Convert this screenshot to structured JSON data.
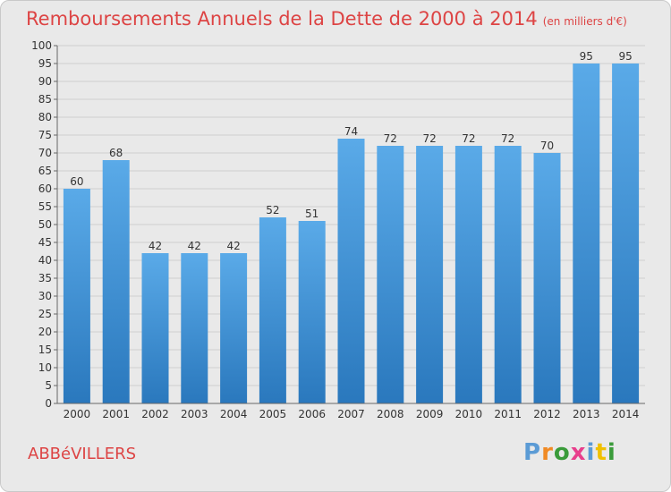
{
  "title": "Remboursements Annuels de la Dette de 2000 à 2014",
  "subtitle": "(en milliers d'€)",
  "location": "ABBéVILLERS",
  "logo": {
    "letters": [
      "P",
      "r",
      "o",
      "x",
      "i",
      "t",
      "i"
    ],
    "colors": [
      "#5b9bd5",
      "#f08a24",
      "#3a9b3a",
      "#e83e8c",
      "#5b9bd5",
      "#f0c000",
      "#3a9b3a"
    ]
  },
  "colors": {
    "bar_top": "#5aaae8",
    "bar_bottom": "#2a78bd",
    "title": "#dd4444",
    "background": "#e9e9e9"
  },
  "chart_data": {
    "type": "bar",
    "categories": [
      "2000",
      "2001",
      "2002",
      "2003",
      "2004",
      "2005",
      "2006",
      "2007",
      "2008",
      "2009",
      "2010",
      "2011",
      "2012",
      "2013",
      "2014"
    ],
    "values": [
      60,
      68,
      42,
      42,
      42,
      52,
      51,
      74,
      72,
      72,
      72,
      72,
      70,
      95,
      95
    ],
    "ylim": [
      0,
      100
    ],
    "ytick_step": 5,
    "grid": true,
    "data_labels": true
  }
}
